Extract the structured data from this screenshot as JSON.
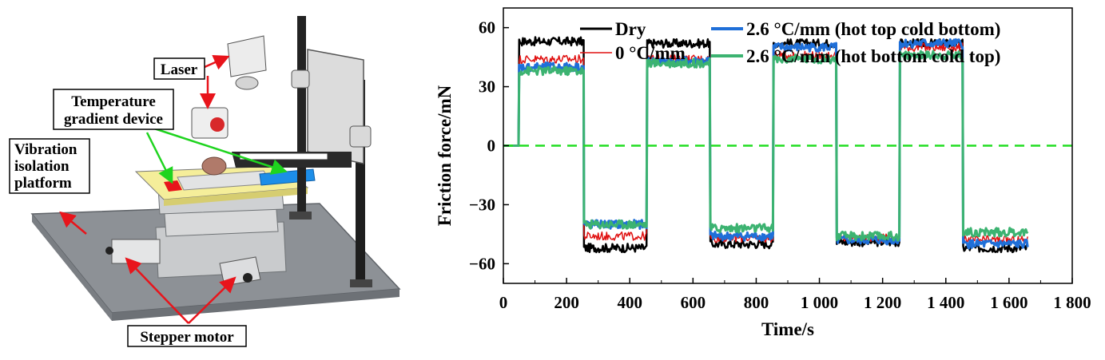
{
  "diagram": {
    "labels": {
      "laser": "Laser",
      "temperature_line1": "Temperature",
      "temperature_line2": "gradient device",
      "vibration_line1": "Vibration",
      "vibration_line2": "isolation",
      "vibration_line3": "platform",
      "stepper": "Stepper motor"
    },
    "colors": {
      "arrow_red": "#e8141b",
      "arrow_green": "#1fd41f",
      "plate_yellow": "#f5ee9a",
      "heater_blue": "#1d8ee8"
    }
  },
  "chart_data": {
    "type": "line",
    "title": "",
    "xlabel": "Time/s",
    "ylabel": "Friction force/mN",
    "xlim": [
      0,
      1800
    ],
    "ylim": [
      -70,
      70
    ],
    "xticks": [
      0,
      200,
      400,
      600,
      800,
      1000,
      1200,
      1400,
      1600,
      1800
    ],
    "xtick_labels": [
      "0",
      "200",
      "400",
      "600",
      "800",
      "1 000",
      "1 200",
      "1 400",
      "1 600",
      "1 800"
    ],
    "yticks": [
      -60,
      -30,
      0,
      30,
      60
    ],
    "ytick_labels": [
      "−60",
      "−30",
      "0",
      "30",
      "60"
    ],
    "reference_line": {
      "y": 0,
      "style": "dashed",
      "color": "#22dd22"
    },
    "segments_x": [
      [
        0,
        50
      ],
      [
        50,
        255
      ],
      [
        255,
        455
      ],
      [
        455,
        655
      ],
      [
        655,
        855
      ],
      [
        855,
        1055
      ],
      [
        1055,
        1255
      ],
      [
        1255,
        1455
      ],
      [
        1455,
        1660
      ]
    ],
    "series": [
      {
        "name": "Dry",
        "color": "#000000",
        "width": 2.5,
        "levels": [
          0,
          53,
          -52,
          52,
          -50,
          52,
          -49,
          52,
          -52
        ]
      },
      {
        "name": "0 °C/mm",
        "color": "#e01010",
        "width": 1.5,
        "levels": [
          0,
          44,
          -46,
          44,
          -47,
          46,
          -47,
          50,
          -48
        ]
      },
      {
        "name": "2.6 °C/mm (hot top cold bottom)",
        "color": "#1f6fd8",
        "width": 3,
        "levels": [
          0,
          40,
          -40,
          43,
          -46,
          50,
          -48,
          52,
          -50
        ]
      },
      {
        "name": "2.6 °C/mm (hot bottom cold top)",
        "color": "#3cb371",
        "width": 3,
        "levels": [
          0,
          38,
          -40,
          42,
          -42,
          44,
          -46,
          46,
          -44
        ]
      }
    ],
    "legend_position": "top"
  }
}
